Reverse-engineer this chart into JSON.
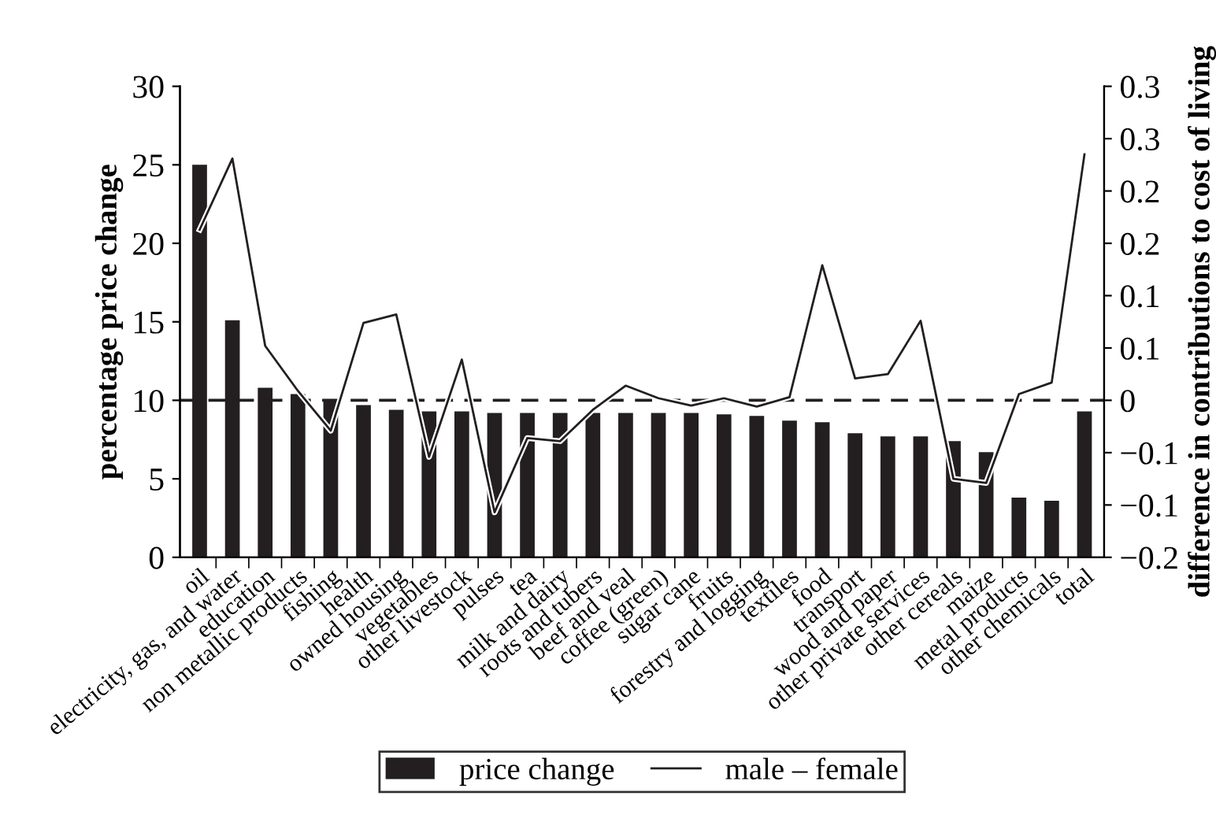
{
  "chart_data": {
    "type": "bar",
    "xlabel": null,
    "ylabel": "percentage price change",
    "y2label": "difference in contributions to cost of living",
    "categories": [
      "oil",
      "electricity, gas, and water",
      "education",
      "non metallic products",
      "fishing",
      "health",
      "owned housing",
      "vegetables",
      "other livestock",
      "pulses",
      "tea",
      "milk and dairy",
      "roots and tubers",
      "beef and veal",
      "coffee (green)",
      "sugar cane",
      "fruits",
      "forestry and logging",
      "textiles",
      "food",
      "transport",
      "wood and paper",
      "other private services",
      "other cereals",
      "maize",
      "metal products",
      "other chemicals",
      "total"
    ],
    "series": [
      {
        "name": "price change",
        "color": "#231f20",
        "values": [
          25,
          15.1,
          10.8,
          10.4,
          10.0,
          9.7,
          9.4,
          9.3,
          9.3,
          9.2,
          9.2,
          9.2,
          9.2,
          9.2,
          9.2,
          9.2,
          9.1,
          9.0,
          8.7,
          8.6,
          7.9,
          7.7,
          7.7,
          7.4,
          6.7,
          3.8,
          3.6,
          9.3
        ]
      },
      {
        "name": "male – female",
        "type": "line",
        "axis": "y2",
        "color": "#231f20",
        "values": [
          0.163,
          0.231,
          0.052,
          0.009,
          -0.029,
          0.074,
          0.082,
          -0.054,
          0.039,
          -0.107,
          -0.036,
          -0.039,
          -0.009,
          0.014,
          0.002,
          -0.005,
          0.002,
          -0.006,
          0.003,
          0.129,
          0.021,
          0.025,
          0.076,
          -0.075,
          -0.079,
          0.006,
          0.017,
          0.235
        ]
      }
    ],
    "ylim": [
      0,
      30
    ],
    "yticks": [
      0,
      5,
      10,
      15,
      20,
      25,
      30
    ],
    "y2lim": [
      -0.15,
      0.3
    ],
    "y2ticks": [
      {
        "value": -0.15,
        "label": "−0.2"
      },
      {
        "value": -0.1,
        "label": "−0.1"
      },
      {
        "value": -0.05,
        "label": "−0.1"
      },
      0,
      {
        "value": 0.05,
        "label": "0.1"
      },
      {
        "value": 0.1,
        "label": "0.1"
      },
      {
        "value": 0.15,
        "label": "0.2"
      },
      {
        "value": 0.2,
        "label": "0.2"
      },
      {
        "value": 0.25,
        "label": "0.3"
      },
      {
        "value": 0.3,
        "label": "0.3"
      }
    ],
    "ref_lines": [
      {
        "axis": "y2",
        "value": 0,
        "line_style": "dashed",
        "color": "#231f20"
      }
    ],
    "legend": "bottom",
    "grid": false,
    "marker": "none",
    "line_style": "solid"
  }
}
